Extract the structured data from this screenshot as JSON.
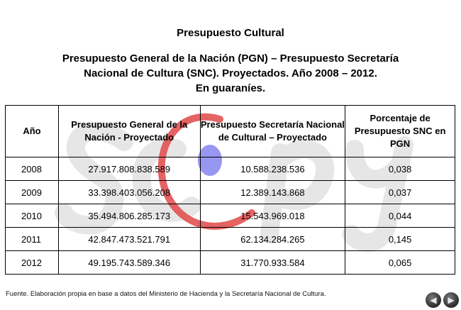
{
  "header": {
    "title": "Presupuesto Cultural",
    "subtitle_line1": "Presupuesto General de la Nación (PGN) – Presupuesto Secretaría",
    "subtitle_line2": "Nacional de Cultura (SNC). Proyectados. Año 2008 – 2012.",
    "subtitle_line3": "En guaraníes."
  },
  "table": {
    "headers": {
      "year": "Año",
      "pgn": "Presupuesto General de la Nación - Proyectado",
      "snc": "Presupuesto Secretaría Nacional de Cultural – Proyectado",
      "pct": "Porcentaje de Presupuesto SNC en PGN"
    },
    "rows": [
      {
        "year": "2008",
        "pgn": "27.917.808.838.589",
        "snc": "10.588.238.536",
        "pct": "0,038"
      },
      {
        "year": "2009",
        "pgn": "33.398.403.056.208",
        "snc": "12.389.143.868",
        "pct": "0,037"
      },
      {
        "year": "2010",
        "pgn": "35.494.806.285.173",
        "snc": "15.543.969.018",
        "pct": "0,044"
      },
      {
        "year": "2011",
        "pgn": "42.847.473.521.791",
        "snc": "62.134.284.265",
        "pct": "0,145"
      },
      {
        "year": "2012",
        "pgn": "49.195.743.589.346",
        "snc": "31.770.933.584",
        "pct": "0,065"
      }
    ]
  },
  "footnote": "Fuente. Elaboración propia en base a datos  del Ministerio de Hacienda y  la Secretaría Nacional de Cultura.",
  "watermark": {
    "text": "sicpy",
    "colors": {
      "letters": "#e6e6e6",
      "swoosh": "#e04848",
      "dot": "#8c8cf0"
    }
  },
  "nav": {
    "prev_icon": "chevron-left-icon",
    "next_icon": "chevron-right-icon",
    "prev_glyph": "◀",
    "next_glyph": "▶"
  }
}
